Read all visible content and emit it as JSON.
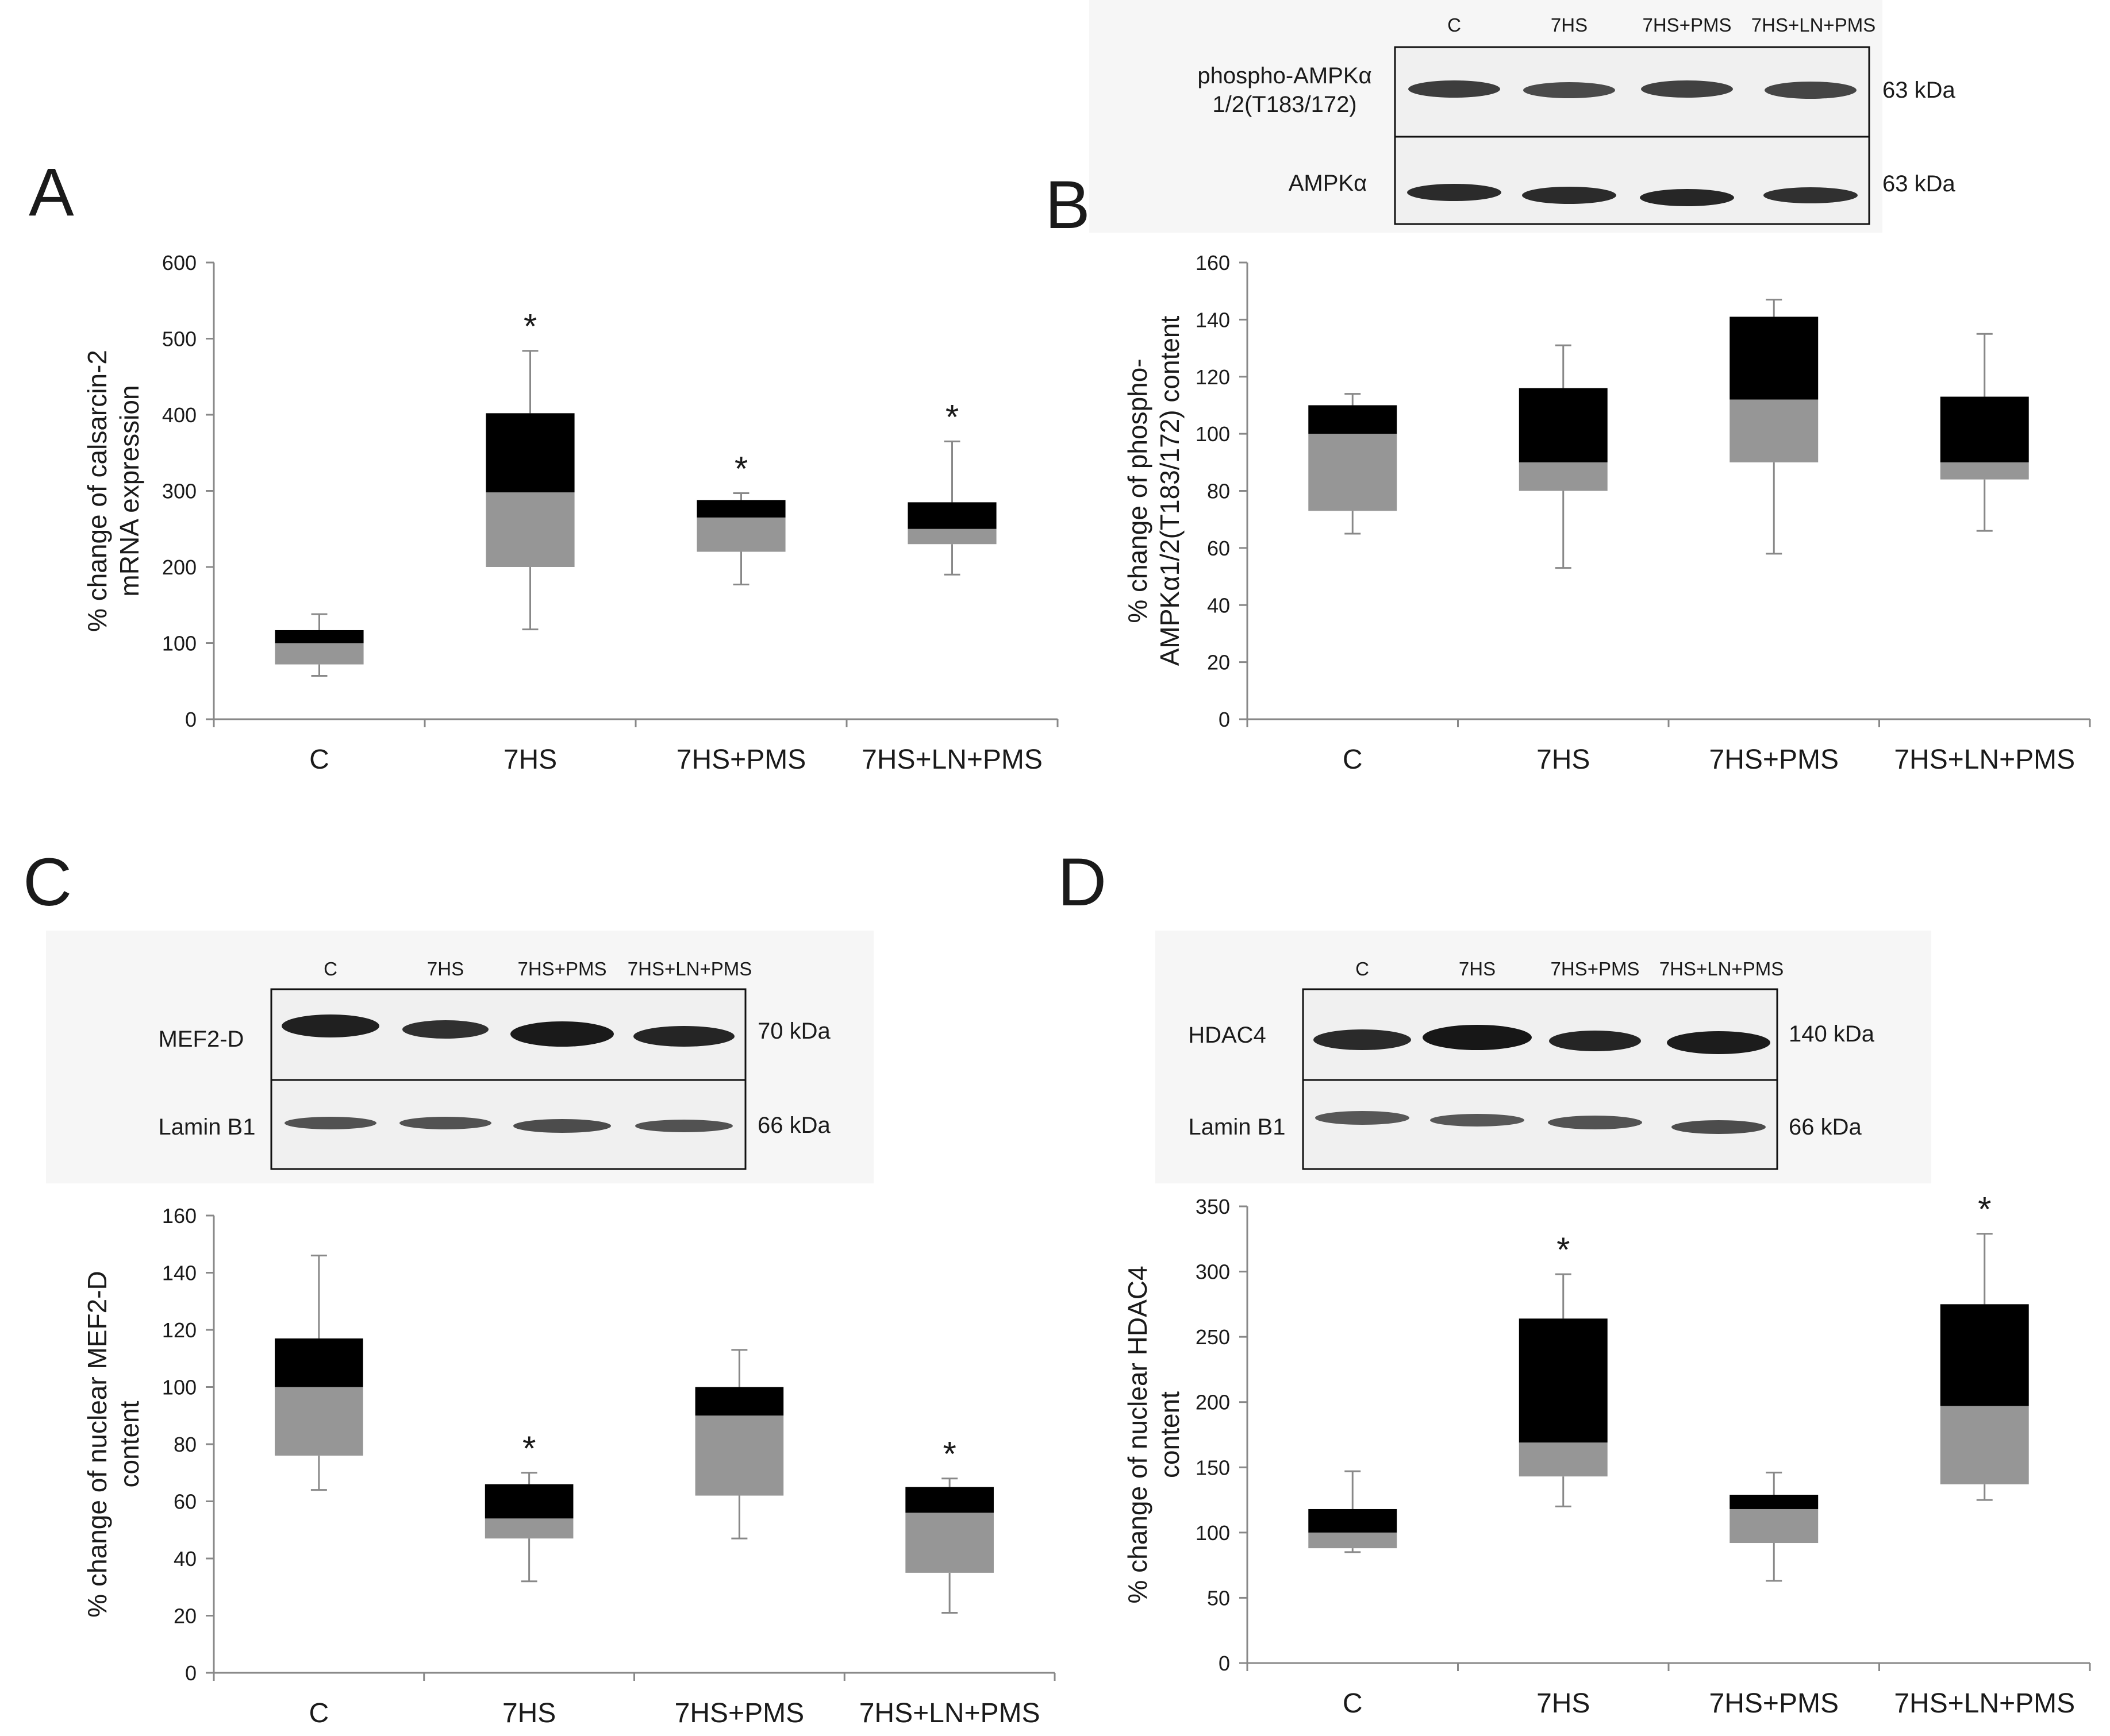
{
  "panels": {
    "A": {
      "letter": "A"
    },
    "B": {
      "letter": "B",
      "blot": {
        "lanes": [
          "C",
          "7HS",
          "7HS+PMS",
          "7HS+LN+PMS"
        ],
        "rows": [
          {
            "protein_lines": [
              "phospho-AMPKα",
              "1/2(T183/172)"
            ],
            "kda": "63 kDa"
          },
          {
            "protein_lines": [
              "AMPKα"
            ],
            "kda": "63 kDa"
          }
        ]
      }
    },
    "C": {
      "letter": "C",
      "blot": {
        "lanes": [
          "C",
          "7HS",
          "7HS+PMS",
          "7HS+LN+PMS"
        ],
        "rows": [
          {
            "protein_lines": [
              "MEF2-D"
            ],
            "kda": "70 kDa"
          },
          {
            "protein_lines": [
              "Lamin B1"
            ],
            "kda": "66 kDa"
          }
        ]
      }
    },
    "D": {
      "letter": "D",
      "blot": {
        "lanes": [
          "C",
          "7HS",
          "7HS+PMS",
          "7HS+LN+PMS"
        ],
        "rows": [
          {
            "protein_lines": [
              "HDAC4"
            ],
            "kda": "140 kDa"
          },
          {
            "protein_lines": [
              "Lamin B1"
            ],
            "kda": "66 kDa"
          }
        ]
      }
    }
  },
  "chart_data": [
    {
      "panel": "A",
      "type": "box",
      "categories": [
        "C",
        "7HS",
        "7HS+PMS",
        "7HS+LN+PMS"
      ],
      "ylabel_lines": [
        "%  change of calsarcin-2",
        "mRNA expression"
      ],
      "ylim": [
        0,
        600
      ],
      "yticks": [
        0,
        100,
        200,
        300,
        400,
        500,
        600
      ],
      "boxes": [
        {
          "min": 57,
          "q1": 72,
          "median": 100,
          "q3": 117,
          "max": 138,
          "significant": false
        },
        {
          "min": 118,
          "q1": 200,
          "median": 298,
          "q3": 402,
          "max": 484,
          "significant": true
        },
        {
          "min": 177,
          "q1": 220,
          "median": 265,
          "q3": 288,
          "max": 297,
          "significant": true
        },
        {
          "min": 190,
          "q1": 230,
          "median": 250,
          "q3": 285,
          "max": 365,
          "significant": true
        }
      ],
      "significance_marker": "*"
    },
    {
      "panel": "B",
      "type": "box",
      "categories": [
        "C",
        "7HS",
        "7HS+PMS",
        "7HS+LN+PMS"
      ],
      "ylabel_lines": [
        "% change of phospho-",
        "AMPKα1/2(T183/172)  content"
      ],
      "ylim": [
        0,
        160
      ],
      "yticks": [
        0,
        20,
        40,
        60,
        80,
        100,
        120,
        140,
        160
      ],
      "boxes": [
        {
          "min": 65,
          "q1": 73,
          "median": 100,
          "q3": 110,
          "max": 114,
          "significant": false
        },
        {
          "min": 53,
          "q1": 80,
          "median": 90,
          "q3": 116,
          "max": 131,
          "significant": false
        },
        {
          "min": 58,
          "q1": 90,
          "median": 112,
          "q3": 141,
          "max": 147,
          "significant": false
        },
        {
          "min": 66,
          "q1": 84,
          "median": 90,
          "q3": 113,
          "max": 135,
          "significant": false
        }
      ],
      "significance_marker": "*"
    },
    {
      "panel": "C",
      "type": "box",
      "categories": [
        "C",
        "7HS",
        "7HS+PMS",
        "7HS+LN+PMS"
      ],
      "ylabel_lines": [
        "% change of nuclear MEF2-D",
        "content"
      ],
      "ylim": [
        0,
        160
      ],
      "yticks": [
        0,
        20,
        40,
        60,
        80,
        100,
        120,
        140,
        160
      ],
      "boxes": [
        {
          "min": 64,
          "q1": 76,
          "median": 100,
          "q3": 117,
          "max": 146,
          "significant": false
        },
        {
          "min": 32,
          "q1": 47,
          "median": 54,
          "q3": 66,
          "max": 70,
          "significant": true
        },
        {
          "min": 47,
          "q1": 62,
          "median": 90,
          "q3": 100,
          "max": 113,
          "significant": false
        },
        {
          "min": 21,
          "q1": 35,
          "median": 56,
          "q3": 65,
          "max": 68,
          "significant": true
        }
      ],
      "significance_marker": "*"
    },
    {
      "panel": "D",
      "type": "box",
      "categories": [
        "C",
        "7HS",
        "7HS+PMS",
        "7HS+LN+PMS"
      ],
      "ylabel_lines": [
        "% change of nuclear HDAC4",
        "content"
      ],
      "ylim": [
        0,
        350
      ],
      "yticks": [
        0,
        50,
        100,
        150,
        200,
        250,
        300,
        350
      ],
      "boxes": [
        {
          "min": 85,
          "q1": 88,
          "median": 100,
          "q3": 118,
          "max": 147,
          "significant": false
        },
        {
          "min": 120,
          "q1": 143,
          "median": 169,
          "q3": 264,
          "max": 298,
          "significant": true
        },
        {
          "min": 63,
          "q1": 92,
          "median": 118,
          "q3": 129,
          "max": 146,
          "significant": false
        },
        {
          "min": 125,
          "q1": 137,
          "median": 197,
          "q3": 275,
          "max": 329,
          "significant": true
        }
      ],
      "significance_marker": "*"
    }
  ],
  "colors": {
    "upper_box": "#000000",
    "lower_box": "#969696",
    "axis": "#888888",
    "blot_bg": "#f2f2f2",
    "band": "#101010"
  }
}
